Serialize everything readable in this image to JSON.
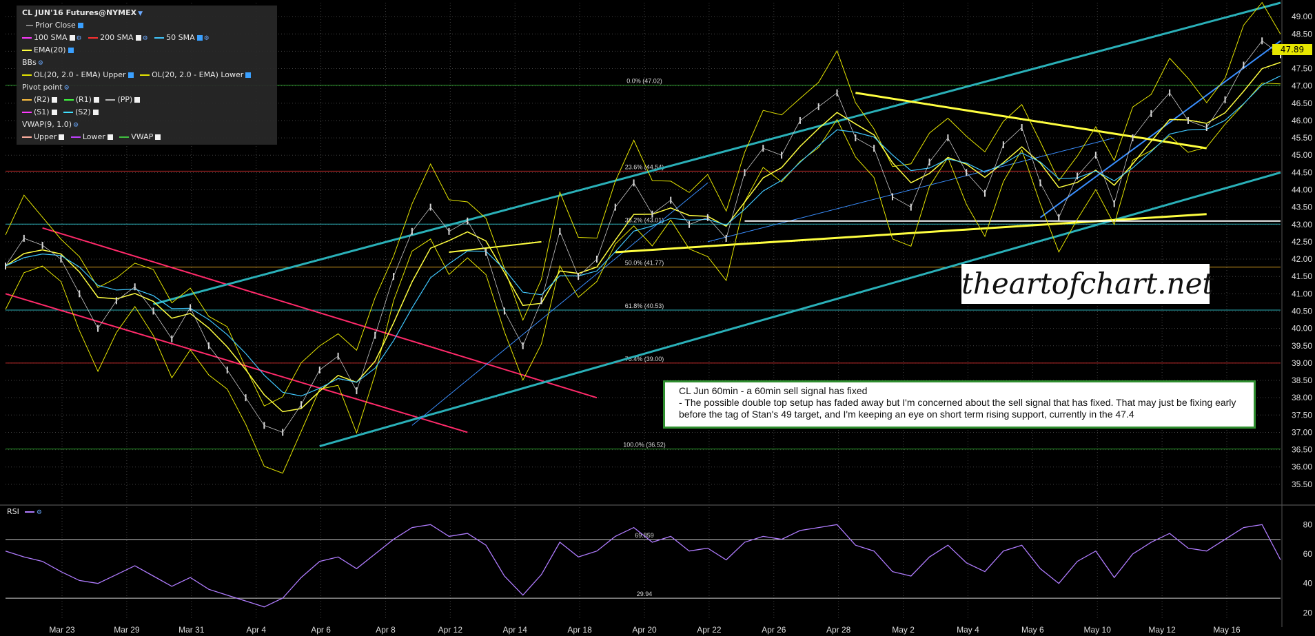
{
  "legend": {
    "symbol": "CL JUN'16 Futures@NYMEX",
    "prior_close": "Prior Close",
    "sma100": "100 SMA",
    "sma200": "200 SMA",
    "sma50": "50 SMA",
    "ema20": "EMA(20)",
    "bbs": "BBs",
    "bb_upper": "OL(20, 2.0 - EMA) Upper",
    "bb_lower": "OL(20, 2.0 - EMA) Lower",
    "pivot": "Pivot point",
    "r2": "(R2)",
    "r1": "(R1)",
    "pp": "(PP)",
    "s1": "(S1)",
    "s2": "(S2)",
    "vwap": "VWAP(9, 1.0)",
    "vwap_upper": "Upper",
    "vwap_lower": "Lower",
    "vwap_line": "VWAP"
  },
  "rsi_label": "RSI",
  "watermark": "theartofchart.net",
  "note": {
    "line1": "CL Jun 60min - a 60min sell signal has fixed",
    "line2": "- The possible double top setup has faded away but I'm concerned about the sell signal that has fixed. That may just be fixing early before the tag of Stan's 49 target, and I'm keeping an eye on short term rising support, currently in the 47.4"
  },
  "price_tag": "47.89",
  "colors": {
    "price": "#d9d9d9",
    "ema": "#ffff40",
    "sma50": "#40c8ff",
    "band": "#e6e600",
    "channel": "#2ab0b8",
    "downtrend": "#ff2a6a",
    "fib_line": "#2a9d2a",
    "rsi": "#b07cff"
  },
  "chart_data": {
    "type": "line",
    "title": "CL JUN'16 Futures@NYMEX",
    "ylim": [
      35.0,
      49.4
    ],
    "y_ticks": [
      35.5,
      36.0,
      36.5,
      37.0,
      37.5,
      38.0,
      38.5,
      39.0,
      39.5,
      40.0,
      40.5,
      41.0,
      41.5,
      42.0,
      42.5,
      43.0,
      43.5,
      44.0,
      44.5,
      45.0,
      45.5,
      46.0,
      46.5,
      47.0,
      47.5,
      48.0,
      48.5,
      49.0
    ],
    "x_labels": [
      "Mar 23",
      "Mar 29",
      "Mar 31",
      "Apr 4",
      "Apr 6",
      "Apr 8",
      "Apr 12",
      "Apr 14",
      "Apr 18",
      "Apr 20",
      "Apr 22",
      "Apr 26",
      "Apr 28",
      "May 2",
      "May 4",
      "May 6",
      "May 10",
      "May 12",
      "May 16"
    ],
    "series": [
      {
        "values": [
          41.8,
          42.6,
          42.4,
          42.0,
          41.0,
          40.0,
          40.8,
          41.2,
          40.5,
          39.7,
          40.6,
          39.5,
          38.8,
          38.0,
          37.2,
          37.0,
          37.8,
          38.8,
          39.2,
          38.2,
          39.8,
          41.5,
          42.8,
          43.5,
          42.8,
          43.1,
          42.2,
          40.5,
          39.5,
          40.8,
          42.8,
          41.5,
          42.0,
          43.5,
          44.2,
          43.3,
          43.7,
          43.0,
          43.2,
          42.6,
          44.5,
          45.2,
          45.0,
          46.0,
          46.4,
          46.8,
          45.5,
          45.2,
          43.8,
          43.5,
          44.8,
          45.5,
          44.5,
          43.9,
          45.3,
          45.8,
          44.2,
          43.2,
          44.4,
          45.0,
          43.6,
          45.5,
          46.2,
          46.8,
          46.0,
          45.8,
          46.6,
          47.6,
          48.3,
          47.9
        ]
      }
    ],
    "fib_levels": [
      {
        "label": "0.0% (47.02)",
        "value": 47.02
      },
      {
        "label": "23.6% (44.54)",
        "value": 44.54
      },
      {
        "label": "38.2% (43.01)",
        "value": 43.01
      },
      {
        "label": "50.0% (41.77)",
        "value": 41.77
      },
      {
        "label": "61.8% (40.53)",
        "value": 40.53
      },
      {
        "label": "76.4% (39.00)",
        "value": 39.0
      },
      {
        "label": "100.0% (36.52)",
        "value": 36.52
      }
    ],
    "rsi": {
      "label": "RSI",
      "ylim": [
        15,
        90
      ],
      "y_ticks": [
        20,
        40,
        60,
        80
      ],
      "levels": [
        {
          "label": "69.859",
          "value": 69.859
        },
        {
          "label": "29.94",
          "value": 29.94
        }
      ],
      "values": [
        62,
        58,
        55,
        48,
        42,
        40,
        46,
        52,
        45,
        38,
        44,
        36,
        32,
        28,
        24,
        30,
        44,
        55,
        58,
        50,
        60,
        70,
        78,
        80,
        72,
        74,
        66,
        45,
        32,
        46,
        68,
        58,
        62,
        72,
        78,
        68,
        72,
        62,
        64,
        56,
        68,
        72,
        70,
        76,
        78,
        80,
        66,
        62,
        48,
        45,
        58,
        66,
        54,
        48,
        62,
        66,
        50,
        40,
        55,
        62,
        44,
        60,
        68,
        74,
        64,
        62,
        70,
        78,
        80,
        56
      ]
    }
  }
}
